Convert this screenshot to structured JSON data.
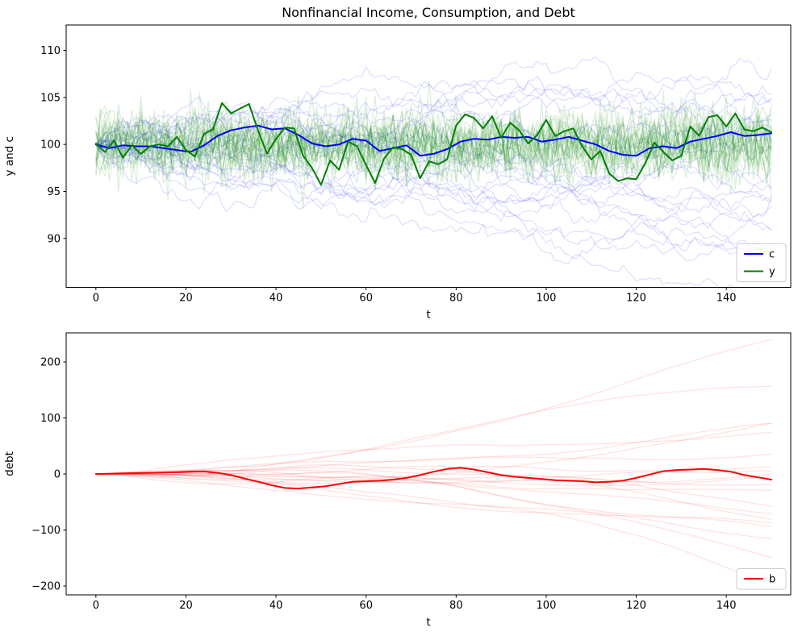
{
  "figure": {
    "title": "Nonfinancial Income, Consumption, and Debt",
    "background": "#ffffff"
  },
  "chart_data": [
    {
      "type": "line",
      "title": "Nonfinancial Income, Consumption, and Debt",
      "xlabel": "t",
      "ylabel": "y and c",
      "xlim": [
        -6.6,
        154.3
      ],
      "ylim": [
        84.8,
        112.7
      ],
      "xticks": [
        0,
        20,
        40,
        60,
        80,
        100,
        120,
        140
      ],
      "xticklabels": [
        "0",
        "20",
        "40",
        "60",
        "80",
        "100",
        "120",
        "140"
      ],
      "yticks": [
        90,
        95,
        100,
        105,
        110
      ],
      "yticklabels": [
        "90",
        "95",
        "100",
        "105",
        "110"
      ],
      "grid": false,
      "legend": {
        "position": "lower right",
        "entries": [
          {
            "label": "c",
            "color": "#0000ff"
          },
          {
            "label": "y",
            "color": "#008000"
          }
        ]
      },
      "series": [
        {
          "name": "c",
          "color": "#0000ff",
          "linewidth": 2,
          "x0": 0,
          "dx": 3,
          "values": [
            100.0,
            99.6,
            99.9,
            99.8,
            99.8,
            99.6,
            99.4,
            99.2,
            99.9,
            100.9,
            101.5,
            101.8,
            102.0,
            101.6,
            101.7,
            101.0,
            100.1,
            99.8,
            100.0,
            100.6,
            100.4,
            99.3,
            99.6,
            99.9,
            98.8,
            99.0,
            99.5,
            100.3,
            100.6,
            100.5,
            100.8,
            100.7,
            100.8,
            100.3,
            100.5,
            100.8,
            100.4,
            100.0,
            99.3,
            98.9,
            98.8,
            99.6,
            99.8,
            99.6,
            100.3,
            100.6,
            100.9,
            101.3,
            100.9,
            101.0,
            101.2
          ]
        },
        {
          "name": "y",
          "color": "#008000",
          "linewidth": 2,
          "x0": 0,
          "dx": 2,
          "values": [
            100.1,
            99.2,
            100.4,
            98.6,
            99.9,
            99.0,
            99.8,
            100.0,
            99.8,
            100.8,
            99.4,
            98.7,
            101.1,
            101.6,
            104.4,
            103.3,
            103.8,
            104.3,
            101.5,
            99.0,
            100.6,
            101.8,
            101.7,
            98.8,
            97.5,
            95.7,
            98.3,
            97.3,
            100.3,
            99.8,
            97.8,
            95.9,
            98.5,
            99.7,
            99.5,
            98.9,
            96.4,
            98.2,
            97.9,
            98.4,
            102.0,
            103.2,
            102.8,
            101.7,
            103.0,
            100.7,
            102.3,
            101.5,
            100.1,
            101.0,
            102.6,
            100.9,
            101.4,
            101.7,
            99.8,
            98.4,
            99.3,
            96.9,
            96.1,
            96.4,
            96.3,
            98.0,
            100.2,
            99.2,
            98.3,
            98.8,
            101.9,
            100.9,
            102.9,
            103.1,
            101.9,
            103.3,
            101.6,
            101.4,
            101.8,
            101.3
          ]
        }
      ],
      "ensembles": [
        {
          "name": "c-simulation-paths",
          "color": "#0000ff",
          "alpha": 0.12,
          "count": 25,
          "model": "random_walk",
          "start": 100,
          "sigma": 0.45,
          "seed": 12,
          "t_max": 150
        },
        {
          "name": "y-simulation-paths",
          "color": "#008000",
          "alpha": 0.13,
          "count": 25,
          "model": "iid",
          "mean": 100,
          "sigma": 1.8,
          "seed": 5,
          "t_max": 150
        }
      ]
    },
    {
      "type": "line",
      "title": "",
      "xlabel": "t",
      "ylabel": "debt",
      "xlim": [
        -6.6,
        154.3
      ],
      "ylim": [
        -215.8,
        251.8
      ],
      "xticks": [
        0,
        20,
        40,
        60,
        80,
        100,
        120,
        140
      ],
      "xticklabels": [
        "0",
        "20",
        "40",
        "60",
        "80",
        "100",
        "120",
        "140"
      ],
      "yticks": [
        -200,
        -100,
        0,
        100,
        200
      ],
      "yticklabels": [
        "−200",
        "−100",
        "0",
        "100",
        "200"
      ],
      "grid": false,
      "legend": {
        "position": "lower right",
        "entries": [
          {
            "label": "b",
            "color": "#ff0000"
          }
        ]
      },
      "series": [
        {
          "name": "b",
          "color": "#ff0000",
          "linewidth": 2,
          "x0": 0,
          "dx": 3,
          "values": [
            0.0,
            0.5,
            1.0,
            1.5,
            2.0,
            2.5,
            3.0,
            4.0,
            4.5,
            2.0,
            -2.0,
            -8.0,
            -14.0,
            -20.0,
            -25.0,
            -26.0,
            -24.0,
            -22.0,
            -18.0,
            -14.0,
            -13.0,
            -12.0,
            -10.0,
            -7.0,
            -2.0,
            4.0,
            9.0,
            11.0,
            8.0,
            3.0,
            -2.0,
            -5.0,
            -7.0,
            -9.0,
            -11.0,
            -12.0,
            -13.0,
            -15.0,
            -14.0,
            -12.0,
            -7.0,
            -1.0,
            5.0,
            7.0,
            8.0,
            9.0,
            7.0,
            4.0,
            -2.0,
            -6.0,
            -10.0
          ]
        }
      ],
      "ensembles": [
        {
          "name": "b-simulation-paths",
          "color": "#ff0000",
          "alpha": 0.11,
          "count": 20,
          "model": "integrated",
          "start": 0,
          "sigma": 0.11,
          "seed": 31,
          "t_max": 150
        }
      ]
    }
  ]
}
